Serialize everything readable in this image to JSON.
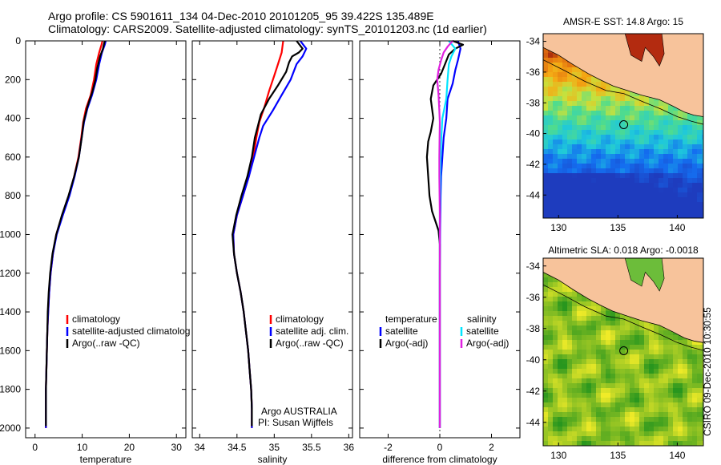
{
  "header": {
    "line1": "Argo profile: CS 5901611_134 04-Dec-2010 20101205_95 39.422S 135.489E",
    "line2": "Climatology: CARS2009. Satellite-adjusted climatology: synTS_20101203.nc (1d earlier)"
  },
  "side_caption": "CSIRO 09-Dec-2010 10:30:55",
  "colors": {
    "climatology": "#ff0000",
    "satellite": "#0000ff",
    "argo": "#000000",
    "salinity_satellite": "#00e5ff",
    "salinity_argo": "#e020e0",
    "land": "#f7c39b"
  },
  "chart_data": [
    {
      "type": "line",
      "xlabel": "temperature",
      "xlim": [
        -2,
        32
      ],
      "xticks": [
        0,
        10,
        20,
        30
      ],
      "ylim": [
        2050,
        0
      ],
      "yticks": [
        0,
        200,
        400,
        600,
        800,
        1000,
        1200,
        1400,
        1600,
        1800,
        2000
      ],
      "legend": {
        "placement": "lower-left",
        "entries": [
          "climatology",
          "satellite-adjusted climatolog",
          "Argo(..raw -QC)"
        ]
      },
      "series": [
        {
          "name": "climatology",
          "color": "#ff0000",
          "points": [
            [
              14.3,
              0
            ],
            [
              14.1,
              20
            ],
            [
              13.6,
              60
            ],
            [
              13.0,
              120
            ],
            [
              12.5,
              200
            ],
            [
              11.8,
              280
            ],
            [
              10.8,
              350
            ],
            [
              10.2,
              420
            ],
            [
              9.8,
              500
            ],
            [
              9.2,
              600
            ],
            [
              8.3,
              700
            ],
            [
              7.2,
              800
            ],
            [
              5.8,
              900
            ],
            [
              4.5,
              1000
            ],
            [
              3.8,
              1100
            ],
            [
              3.3,
              1200
            ],
            [
              3.0,
              1300
            ],
            [
              2.8,
              1400
            ],
            [
              2.6,
              1500
            ],
            [
              2.5,
              1600
            ],
            [
              2.4,
              1700
            ],
            [
              2.3,
              1800
            ],
            [
              2.3,
              1900
            ],
            [
              2.3,
              2000
            ]
          ]
        },
        {
          "name": "satellite-adjusted climatolog",
          "color": "#0000ff",
          "points": [
            [
              15.0,
              0
            ],
            [
              14.8,
              20
            ],
            [
              14.2,
              60
            ],
            [
              13.6,
              120
            ],
            [
              13.0,
              200
            ],
            [
              12.1,
              280
            ],
            [
              11.1,
              350
            ],
            [
              10.4,
              420
            ],
            [
              9.9,
              500
            ],
            [
              9.3,
              600
            ],
            [
              8.4,
              700
            ],
            [
              7.3,
              800
            ],
            [
              5.9,
              900
            ],
            [
              4.6,
              1000
            ],
            [
              3.8,
              1100
            ],
            [
              3.3,
              1200
            ],
            [
              3.0,
              1300
            ],
            [
              2.8,
              1400
            ],
            [
              2.6,
              1500
            ],
            [
              2.5,
              1600
            ],
            [
              2.4,
              1700
            ],
            [
              2.3,
              1800
            ],
            [
              2.3,
              1900
            ],
            [
              2.3,
              2000
            ]
          ]
        },
        {
          "name": "Argo(..raw -QC)",
          "color": "#000000",
          "points": [
            [
              14.8,
              0
            ],
            [
              14.6,
              20
            ],
            [
              14.4,
              40
            ],
            [
              13.8,
              80
            ],
            [
              13.2,
              140
            ],
            [
              12.8,
              200
            ],
            [
              12.2,
              260
            ],
            [
              11.1,
              340
            ],
            [
              10.3,
              420
            ],
            [
              9.9,
              500
            ],
            [
              9.3,
              600
            ],
            [
              8.3,
              700
            ],
            [
              7.1,
              800
            ],
            [
              5.7,
              900
            ],
            [
              4.5,
              1000
            ],
            [
              3.7,
              1100
            ],
            [
              3.2,
              1200
            ],
            [
              2.9,
              1300
            ],
            [
              2.7,
              1400
            ],
            [
              2.6,
              1500
            ],
            [
              2.5,
              1600
            ],
            [
              2.4,
              1700
            ],
            [
              2.3,
              1800
            ],
            [
              2.3,
              1900
            ],
            [
              2.3,
              1990
            ]
          ]
        }
      ]
    },
    {
      "type": "line",
      "xlabel": "salinity",
      "xlim": [
        33.9,
        36.05
      ],
      "xticks": [
        34,
        34.5,
        35,
        35.5,
        36
      ],
      "xticklabels": [
        "34",
        "34.5",
        "35",
        "35.5",
        "36"
      ],
      "ylim": [
        2050,
        0
      ],
      "legend": {
        "placement": "lower-right",
        "entries": [
          "climatology",
          "satellite adj. clim.",
          "Argo(..raw -QC)"
        ]
      },
      "annotation": [
        "Argo AUSTRALIA",
        "PI: Susan Wijffels"
      ],
      "series": [
        {
          "name": "climatology",
          "color": "#ff0000",
          "points": [
            [
              35.12,
              0
            ],
            [
              35.1,
              60
            ],
            [
              35.05,
              120
            ],
            [
              35.0,
              180
            ],
            [
              34.93,
              260
            ],
            [
              34.87,
              340
            ],
            [
              34.8,
              420
            ],
            [
              34.76,
              500
            ],
            [
              34.72,
              600
            ],
            [
              34.66,
              700
            ],
            [
              34.58,
              800
            ],
            [
              34.5,
              900
            ],
            [
              34.45,
              1000
            ],
            [
              34.46,
              1100
            ],
            [
              34.5,
              1200
            ],
            [
              34.55,
              1300
            ],
            [
              34.59,
              1400
            ],
            [
              34.62,
              1500
            ],
            [
              34.65,
              1600
            ],
            [
              34.67,
              1700
            ],
            [
              34.69,
              1800
            ],
            [
              34.7,
              1900
            ],
            [
              34.7,
              2000
            ]
          ]
        },
        {
          "name": "satellite adj. clim.",
          "color": "#0000ff",
          "points": [
            [
              35.35,
              0
            ],
            [
              35.43,
              40
            ],
            [
              35.38,
              80
            ],
            [
              35.3,
              120
            ],
            [
              35.22,
              200
            ],
            [
              35.1,
              280
            ],
            [
              34.98,
              360
            ],
            [
              34.85,
              440
            ],
            [
              34.8,
              500
            ],
            [
              34.73,
              600
            ],
            [
              34.66,
              700
            ],
            [
              34.58,
              800
            ],
            [
              34.5,
              900
            ],
            [
              34.45,
              1000
            ],
            [
              34.46,
              1100
            ],
            [
              34.5,
              1200
            ],
            [
              34.55,
              1300
            ],
            [
              34.59,
              1400
            ],
            [
              34.62,
              1500
            ],
            [
              34.65,
              1600
            ],
            [
              34.67,
              1700
            ],
            [
              34.69,
              1800
            ],
            [
              34.7,
              1900
            ],
            [
              34.7,
              2000
            ]
          ]
        },
        {
          "name": "Argo(..raw -QC)",
          "color": "#000000",
          "points": [
            [
              35.3,
              0
            ],
            [
              35.38,
              40
            ],
            [
              35.33,
              60
            ],
            [
              35.24,
              80
            ],
            [
              35.2,
              110
            ],
            [
              35.16,
              160
            ],
            [
              35.05,
              230
            ],
            [
              34.93,
              300
            ],
            [
              34.82,
              380
            ],
            [
              34.78,
              440
            ],
            [
              34.74,
              500
            ],
            [
              34.7,
              600
            ],
            [
              34.64,
              700
            ],
            [
              34.56,
              800
            ],
            [
              34.49,
              900
            ],
            [
              34.44,
              1000
            ],
            [
              34.46,
              1100
            ],
            [
              34.5,
              1200
            ],
            [
              34.55,
              1300
            ],
            [
              34.59,
              1400
            ],
            [
              34.62,
              1500
            ],
            [
              34.65,
              1600
            ],
            [
              34.67,
              1700
            ],
            [
              34.69,
              1800
            ],
            [
              34.7,
              1900
            ],
            [
              34.7,
              1990
            ]
          ]
        }
      ]
    },
    {
      "type": "line",
      "xlabel": "difference from climatology",
      "xlim": [
        -3.1,
        3.1
      ],
      "xticks": [
        -2,
        0,
        2
      ],
      "ylim": [
        2050,
        0
      ],
      "legend": {
        "placement": "lower-center",
        "temperature_title": "temperature",
        "salinity_title": "salinity",
        "temperature_entries": [
          "satellite",
          "Argo(-adj)"
        ],
        "salinity_entries": [
          "satellite",
          "Argo(-adj)"
        ]
      },
      "series": [
        {
          "name": "temperature satellite",
          "color": "#0000ff",
          "points": [
            [
              0.7,
              0
            ],
            [
              0.8,
              40
            ],
            [
              0.7,
              100
            ],
            [
              0.6,
              150
            ],
            [
              0.5,
              220
            ],
            [
              0.3,
              300
            ],
            [
              0.25,
              400
            ],
            [
              0.15,
              500
            ],
            [
              0.1,
              600
            ],
            [
              0.05,
              700
            ],
            [
              0.03,
              800
            ],
            [
              0.02,
              900
            ],
            [
              0.01,
              1000
            ],
            [
              0,
              1200
            ],
            [
              0,
              1500
            ],
            [
              0,
              2000
            ]
          ]
        },
        {
          "name": "temperature Argo(-adj)",
          "color": "#000000",
          "points": [
            [
              0.5,
              0
            ],
            [
              0.9,
              20
            ],
            [
              0.6,
              40
            ],
            [
              0.35,
              70
            ],
            [
              0.2,
              120
            ],
            [
              0.05,
              170
            ],
            [
              -0.25,
              230
            ],
            [
              -0.35,
              300
            ],
            [
              -0.25,
              400
            ],
            [
              -0.35,
              470
            ],
            [
              -0.45,
              520
            ],
            [
              -0.5,
              600
            ],
            [
              -0.45,
              700
            ],
            [
              -0.4,
              800
            ],
            [
              -0.3,
              880
            ],
            [
              -0.15,
              940
            ],
            [
              -0.05,
              980
            ],
            [
              0,
              1050
            ],
            [
              0,
              1200
            ],
            [
              0,
              1400
            ],
            [
              0,
              2000
            ]
          ]
        },
        {
          "name": "salinity satellite",
          "color": "#00e5ff",
          "points": [
            [
              0.35,
              0
            ],
            [
              0.6,
              40
            ],
            [
              0.45,
              80
            ],
            [
              0.35,
              120
            ],
            [
              0.3,
              200
            ],
            [
              0.25,
              300
            ],
            [
              0.1,
              400
            ],
            [
              0.06,
              500
            ],
            [
              0.03,
              600
            ],
            [
              0.02,
              700
            ],
            [
              0.01,
              800
            ],
            [
              0,
              900
            ],
            [
              0,
              1000
            ],
            [
              0,
              1300
            ],
            [
              0,
              2000
            ]
          ]
        },
        {
          "name": "salinity Argo(-adj)",
          "color": "#e020e0",
          "points": [
            [
              0.5,
              0
            ],
            [
              0.3,
              30
            ],
            [
              0.15,
              60
            ],
            [
              0.05,
              100
            ],
            [
              -0.05,
              150
            ],
            [
              -0.1,
              200
            ],
            [
              -0.05,
              280
            ],
            [
              -0.02,
              360
            ],
            [
              0,
              420
            ],
            [
              -0.01,
              500
            ],
            [
              -0.02,
              600
            ],
            [
              -0.02,
              700
            ],
            [
              -0.01,
              800
            ],
            [
              0,
              900
            ],
            [
              0,
              1000
            ],
            [
              0,
              1200
            ],
            [
              0,
              2000
            ]
          ]
        }
      ]
    },
    {
      "type": "heatmap",
      "title": "AMSR-E SST: 14.8 Argo: 15",
      "xlim": [
        128.7,
        142.2
      ],
      "ylim": [
        -45.5,
        -33.5
      ],
      "xticks": [
        130,
        135,
        140
      ],
      "yticks": [
        -34,
        -36,
        -38,
        -40,
        -42,
        -44
      ],
      "marker": {
        "lon": 135.489,
        "lat": -39.422
      }
    },
    {
      "type": "heatmap",
      "title": "Altimetric SLA: 0.018 Argo: -0.0018",
      "xlim": [
        128.7,
        142.2
      ],
      "ylim": [
        -45.5,
        -33.5
      ],
      "xticks": [
        130,
        135,
        140
      ],
      "yticks": [
        -34,
        -36,
        -38,
        -40,
        -42,
        -44
      ],
      "marker": {
        "lon": 135.489,
        "lat": -39.422
      }
    }
  ]
}
